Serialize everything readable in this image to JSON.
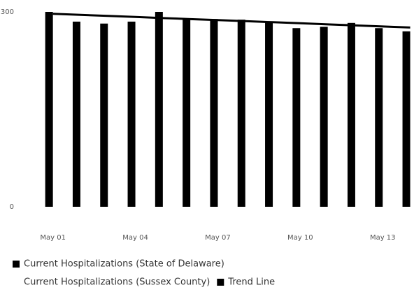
{
  "chart_data": {
    "type": "bar",
    "categories": [
      "May 01",
      null,
      null,
      "May 04",
      null,
      null,
      "May 07",
      null,
      null,
      "May 10",
      null,
      null,
      "May 13",
      null
    ],
    "series": [
      {
        "name": "Current Hospitalizations (State of Delaware)",
        "color": "#000000",
        "type": "bar",
        "values": [
          300,
          285,
          282,
          285,
          300,
          288,
          289,
          288,
          285,
          275,
          277,
          283,
          275,
          270
        ]
      },
      {
        "name": "Current Hospitalizations (Sussex County)",
        "color": "#ffffff",
        "type": "bar",
        "values": [
          null,
          null,
          null,
          null,
          null,
          null,
          null,
          null,
          null,
          null,
          null,
          null,
          null,
          null
        ]
      },
      {
        "name": "Trend Line",
        "color": "#000000",
        "type": "line",
        "values": [
          297,
          295.4,
          293.8,
          292.2,
          290.5,
          288.9,
          287.3,
          285.7,
          284.1,
          282.5,
          280.8,
          279.2,
          277.6,
          276
        ]
      }
    ],
    "ylim": [
      0,
      300
    ],
    "yticks": [
      0,
      300
    ],
    "grid": false
  }
}
